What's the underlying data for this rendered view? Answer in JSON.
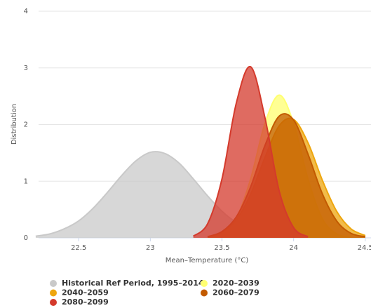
{
  "chart_data": {
    "type": "area",
    "x_label": "Mean–Temperature (°C)",
    "y_label": "Distribution",
    "xlim": [
      22.22,
      24.54
    ],
    "xticks": [
      22.5,
      23,
      23.5,
      24,
      24.5
    ],
    "ylim": [
      0,
      4
    ],
    "yticks": [
      0,
      1,
      2,
      3,
      4
    ],
    "grid": true,
    "legend": "bottom",
    "series": [
      {
        "name": "Historical Ref Period, 1995–2014",
        "color": "#c9c9c9",
        "x": [
          22.2,
          22.3,
          22.4,
          22.5,
          22.6,
          22.7,
          22.8,
          22.9,
          23.0,
          23.1,
          23.2,
          23.3,
          23.4,
          23.5,
          23.6,
          23.7,
          23.8,
          23.9
        ],
        "values": [
          0.03,
          0.07,
          0.16,
          0.3,
          0.52,
          0.8,
          1.1,
          1.36,
          1.51,
          1.49,
          1.32,
          1.04,
          0.74,
          0.47,
          0.27,
          0.14,
          0.06,
          0.02
        ]
      },
      {
        "name": "2020–2039",
        "color": "#ffff70",
        "x": [
          23.4,
          23.5,
          23.6,
          23.7,
          23.8,
          23.9,
          24.0,
          24.1,
          24.2,
          24.3,
          24.4
        ],
        "values": [
          0.01,
          0.07,
          0.34,
          1.04,
          2.02,
          2.52,
          2.02,
          1.04,
          0.34,
          0.07,
          0.01
        ]
      },
      {
        "name": "2040–2059",
        "color": "#eea60e",
        "x": [
          23.4,
          23.5,
          23.6,
          23.7,
          23.8,
          23.9,
          24.0,
          24.1,
          24.2,
          24.3,
          24.4,
          24.5
        ],
        "values": [
          0.02,
          0.1,
          0.32,
          0.77,
          1.42,
          1.98,
          2.09,
          1.68,
          1.02,
          0.47,
          0.16,
          0.04
        ]
      },
      {
        "name": "2060–2079",
        "color": "#c25a00",
        "x": [
          23.4,
          23.5,
          23.6,
          23.7,
          23.8,
          23.9,
          24.0,
          24.1,
          24.2,
          24.3,
          24.4,
          24.5
        ],
        "values": [
          0.02,
          0.11,
          0.37,
          0.9,
          1.63,
          2.15,
          2.08,
          1.48,
          0.78,
          0.3,
          0.08,
          0.02
        ]
      },
      {
        "name": "2080–2099",
        "color": "#d43a2c",
        "x": [
          23.3,
          23.4,
          23.5,
          23.6,
          23.7,
          23.8,
          23.9,
          24.0,
          24.1
        ],
        "values": [
          0.03,
          0.25,
          1.04,
          2.38,
          3.02,
          2.12,
          0.82,
          0.18,
          0.02
        ]
      }
    ]
  }
}
